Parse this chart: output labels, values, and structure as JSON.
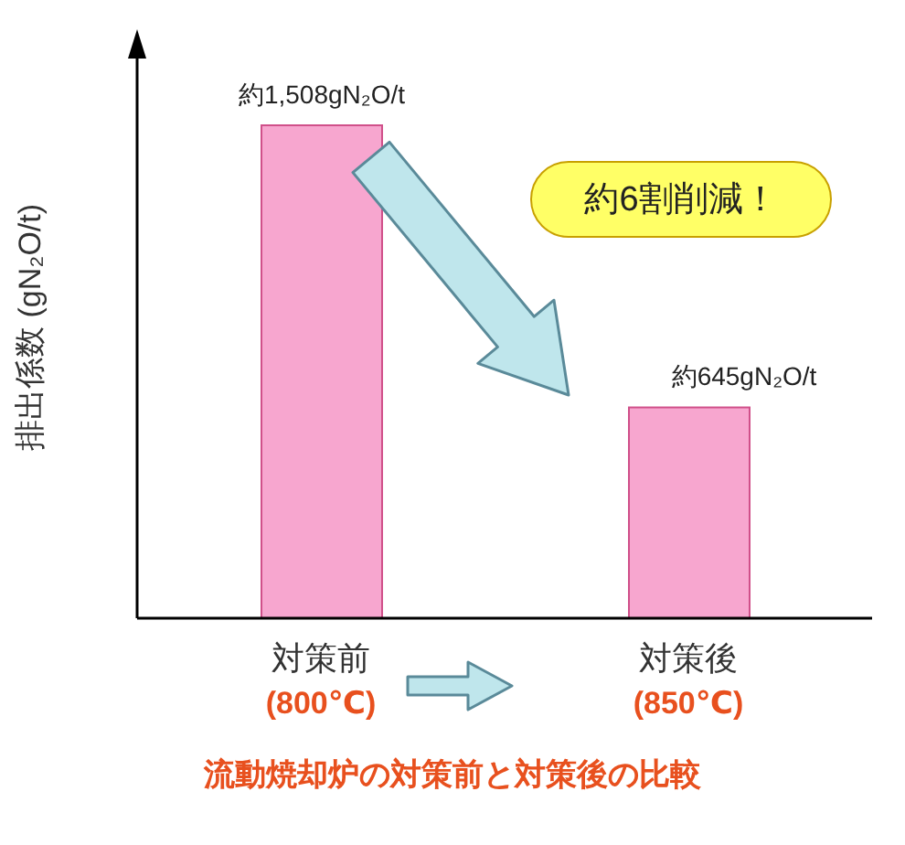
{
  "chart_data": {
    "type": "bar",
    "title": "流動焼却炉の対策前と対策後の比較",
    "ylabel": "排出係数 (gN₂O/t)",
    "categories": [
      "対策前\n(800℃)",
      "対策後\n(850℃)"
    ],
    "values": [
      1508,
      645
    ],
    "value_labels": [
      "約1,508gN₂O/t",
      "約645gN₂O/t"
    ],
    "color": "#f7a6cf",
    "annotations": [
      "約6割削減！"
    ],
    "grid": false,
    "legend": false
  }
}
